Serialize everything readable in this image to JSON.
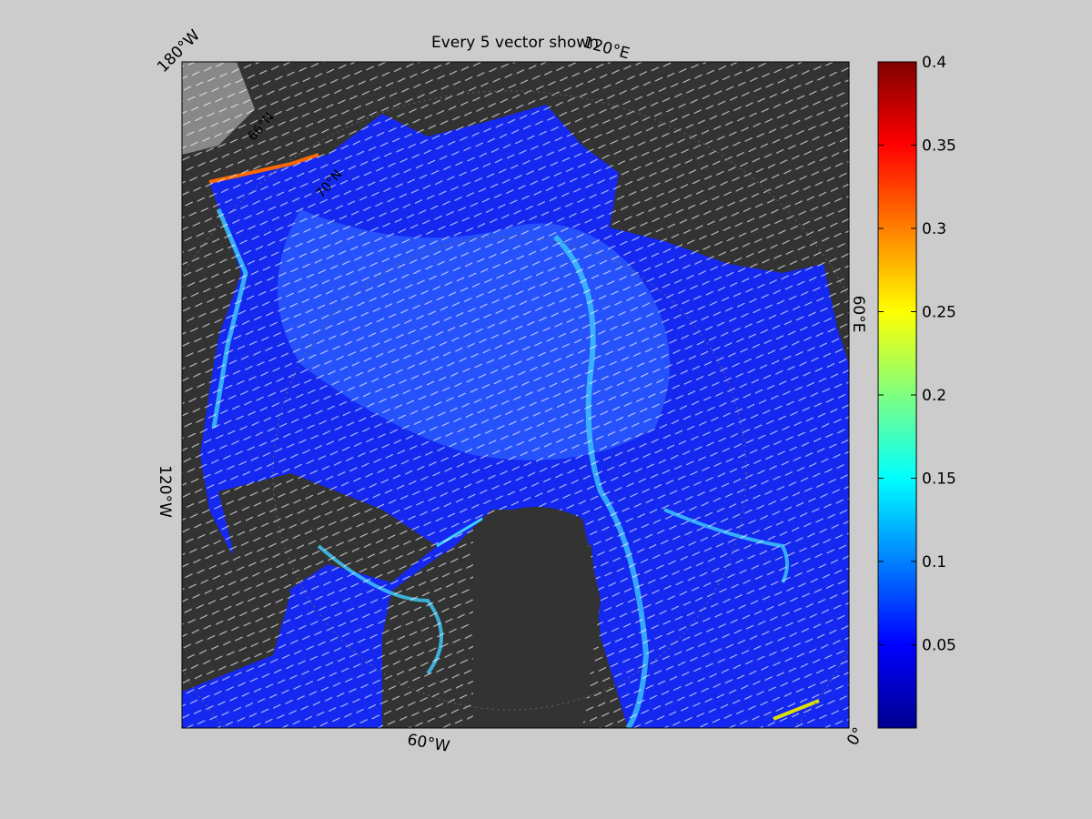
{
  "title": "Every 5 vector shown",
  "map_labels": [
    "180°W",
    "120°E",
    "60°E",
    "0°",
    "60°W",
    "120°W",
    "66°N",
    "70°N"
  ],
  "colorbar": {
    "lim": [
      0,
      0.4
    ],
    "ticks": [
      0.05,
      0.1,
      0.15,
      0.2,
      0.25,
      0.3,
      0.35,
      0.4
    ]
  }
}
